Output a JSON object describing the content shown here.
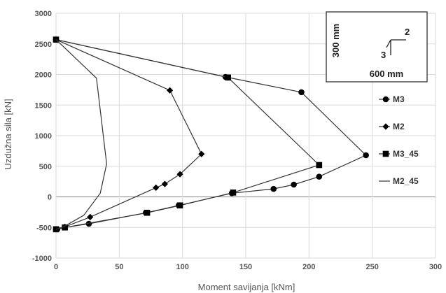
{
  "chart_data": {
    "type": "line",
    "title": "",
    "xlabel": "Moment savijanja [kNm]",
    "ylabel": "Uzdužna sila [kN]",
    "xlim": [
      0,
      300
    ],
    "ylim": [
      -1000,
      3000
    ],
    "xticks": [
      "0",
      "50",
      "100",
      "150",
      "200",
      "250",
      "300"
    ],
    "yticks": [
      "-1000",
      "-500",
      "0",
      "500",
      "1000",
      "1500",
      "2000",
      "2500",
      "3000"
    ],
    "grid": true,
    "legend_position": "right",
    "series": [
      {
        "name": "M3",
        "marker": "circle",
        "points": [
          [
            0,
            2570
          ],
          [
            134,
            1960
          ],
          [
            194,
            1710
          ],
          [
            245,
            680
          ],
          [
            208,
            330
          ],
          [
            188,
            200
          ],
          [
            172,
            130
          ],
          [
            139,
            60
          ],
          [
            97,
            -140
          ],
          [
            71,
            -260
          ],
          [
            26,
            -440
          ],
          [
            7,
            -500
          ],
          [
            1,
            -530
          ],
          [
            0,
            -530
          ]
        ]
      },
      {
        "name": "M2",
        "marker": "diamond",
        "points": [
          [
            0,
            2570
          ],
          [
            90,
            1740
          ],
          [
            115,
            700
          ],
          [
            98,
            370
          ],
          [
            86,
            210
          ],
          [
            79,
            150
          ],
          [
            27,
            -330
          ],
          [
            7,
            -490
          ],
          [
            0,
            -530
          ]
        ]
      },
      {
        "name": "M3_45",
        "marker": "square",
        "points": [
          [
            0,
            2570
          ],
          [
            136,
            1950
          ],
          [
            208,
            520
          ],
          [
            140,
            70
          ],
          [
            98,
            -140
          ],
          [
            72,
            -260
          ],
          [
            7,
            -500
          ],
          [
            0,
            -530
          ]
        ]
      },
      {
        "name": "M2_45",
        "marker": "none",
        "points": [
          [
            0,
            2570
          ],
          [
            32,
            1940
          ],
          [
            40,
            540
          ],
          [
            35,
            60
          ],
          [
            22,
            -300
          ],
          [
            6,
            -490
          ],
          [
            0,
            -530
          ]
        ]
      }
    ],
    "inset": {
      "height_label": "300 mm",
      "width_label": "600 mm",
      "axis_2": "2",
      "axis_3": "3"
    }
  }
}
